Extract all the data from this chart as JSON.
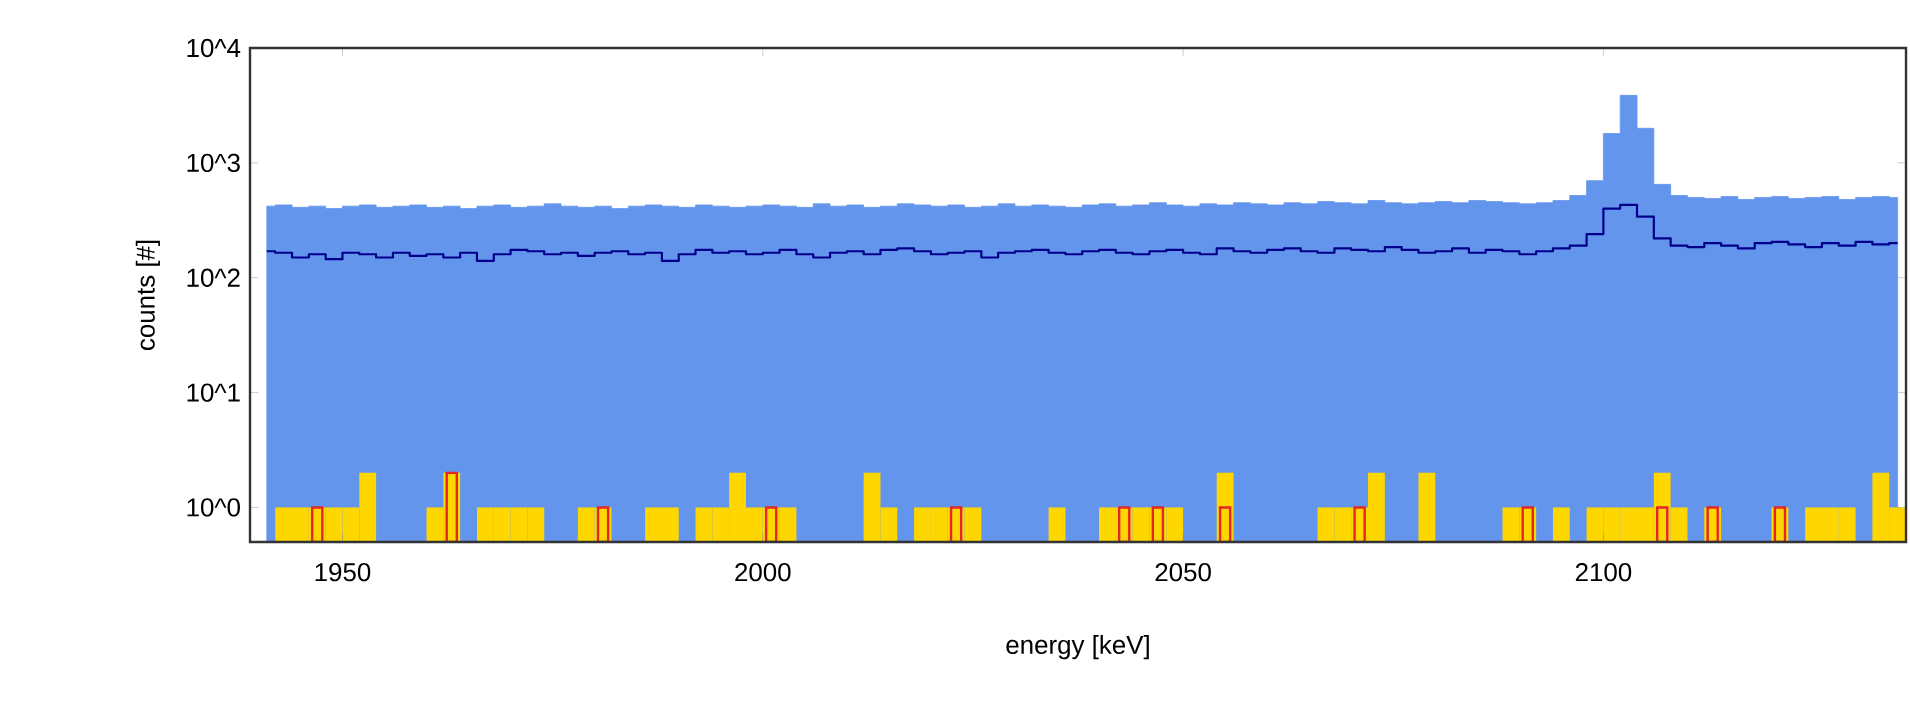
{
  "chart_data": {
    "type": "histogram",
    "xlabel": "energy [keV]",
    "ylabel": "counts [#]",
    "bins": [
      1940,
      1942,
      1944,
      1946,
      1948,
      1950,
      1952,
      1954,
      1956,
      1958,
      1960,
      1962,
      1964,
      1966,
      1968,
      1970,
      1972,
      1974,
      1976,
      1978,
      1980,
      1982,
      1984,
      1986,
      1988,
      1990,
      1992,
      1994,
      1996,
      1998,
      2000,
      2002,
      2004,
      2006,
      2008,
      2010,
      2012,
      2014,
      2016,
      2018,
      2020,
      2022,
      2024,
      2026,
      2028,
      2030,
      2032,
      2034,
      2036,
      2038,
      2040,
      2042,
      2044,
      2046,
      2048,
      2050,
      2052,
      2054,
      2056,
      2058,
      2060,
      2062,
      2064,
      2066,
      2068,
      2070,
      2072,
      2074,
      2076,
      2078,
      2080,
      2082,
      2084,
      2086,
      2088,
      2090,
      2092,
      2094,
      2096,
      2098,
      2100,
      2102,
      2104,
      2106,
      2108,
      2110,
      2112,
      2114,
      2116,
      2118,
      2120,
      2122,
      2124,
      2126,
      2128,
      2130,
      2132,
      2134,
      2136
    ],
    "series": [
      {
        "type": "area",
        "color": "#6495ed",
        "x": [
          1941,
          1943,
          1945,
          1947,
          1949,
          1951,
          1953,
          1955,
          1957,
          1959,
          1961,
          1963,
          1965,
          1967,
          1969,
          1971,
          1973,
          1975,
          1977,
          1979,
          1981,
          1983,
          1985,
          1987,
          1989,
          1991,
          1993,
          1995,
          1997,
          1999,
          2001,
          2003,
          2005,
          2007,
          2009,
          2011,
          2013,
          2015,
          2017,
          2019,
          2021,
          2023,
          2025,
          2027,
          2029,
          2031,
          2033,
          2035,
          2037,
          2039,
          2041,
          2043,
          2045,
          2047,
          2049,
          2051,
          2053,
          2055,
          2057,
          2059,
          2061,
          2063,
          2065,
          2067,
          2069,
          2071,
          2073,
          2075,
          2077,
          2079,
          2081,
          2083,
          2085,
          2087,
          2089,
          2091,
          2093,
          2095,
          2097,
          2099,
          2101,
          2103,
          2105,
          2107,
          2109,
          2111,
          2113,
          2115,
          2117,
          2119,
          2121,
          2123,
          2125,
          2127,
          2129,
          2131,
          2133,
          2135
        ],
        "values": [
          420,
          430,
          410,
          420,
          400,
          420,
          430,
          410,
          420,
          430,
          410,
          420,
          400,
          420,
          430,
          410,
          420,
          440,
          420,
          410,
          420,
          400,
          420,
          430,
          420,
          410,
          430,
          420,
          410,
          420,
          430,
          420,
          410,
          440,
          420,
          430,
          410,
          420,
          440,
          430,
          420,
          430,
          410,
          420,
          440,
          420,
          430,
          420,
          410,
          430,
          440,
          420,
          430,
          450,
          430,
          420,
          440,
          430,
          450,
          440,
          430,
          450,
          440,
          460,
          450,
          440,
          470,
          450,
          440,
          450,
          460,
          450,
          470,
          460,
          450,
          440,
          450,
          470,
          520,
          700,
          1800,
          3870,
          2000,
          650,
          520,
          500,
          490,
          510,
          480,
          500,
          510,
          490,
          500,
          510,
          480,
          500,
          510,
          500
        ]
      },
      {
        "type": "step",
        "color": "#00008b",
        "x": [
          1941,
          1943,
          1945,
          1947,
          1949,
          1951,
          1953,
          1955,
          1957,
          1959,
          1961,
          1963,
          1965,
          1967,
          1969,
          1971,
          1973,
          1975,
          1977,
          1979,
          1981,
          1983,
          1985,
          1987,
          1989,
          1991,
          1993,
          1995,
          1997,
          1999,
          2001,
          2003,
          2005,
          2007,
          2009,
          2011,
          2013,
          2015,
          2017,
          2019,
          2021,
          2023,
          2025,
          2027,
          2029,
          2031,
          2033,
          2035,
          2037,
          2039,
          2041,
          2043,
          2045,
          2047,
          2049,
          2051,
          2053,
          2055,
          2057,
          2059,
          2061,
          2063,
          2065,
          2067,
          2069,
          2071,
          2073,
          2075,
          2077,
          2079,
          2081,
          2083,
          2085,
          2087,
          2089,
          2091,
          2093,
          2095,
          2097,
          2099,
          2101,
          2103,
          2105,
          2107,
          2109,
          2111,
          2113,
          2115,
          2117,
          2119,
          2121,
          2123,
          2125,
          2127,
          2129,
          2131,
          2133,
          2135
        ],
        "values": [
          170,
          165,
          150,
          160,
          145,
          165,
          160,
          150,
          165,
          155,
          160,
          150,
          165,
          140,
          160,
          175,
          170,
          160,
          165,
          155,
          165,
          170,
          160,
          165,
          140,
          160,
          175,
          165,
          170,
          160,
          165,
          175,
          160,
          150,
          165,
          170,
          160,
          175,
          180,
          170,
          160,
          165,
          170,
          150,
          165,
          170,
          175,
          165,
          160,
          170,
          175,
          165,
          160,
          170,
          175,
          165,
          160,
          180,
          170,
          165,
          175,
          180,
          170,
          165,
          180,
          175,
          170,
          185,
          175,
          165,
          170,
          180,
          165,
          175,
          170,
          160,
          170,
          180,
          190,
          240,
          400,
          430,
          340,
          220,
          190,
          185,
          200,
          190,
          180,
          200,
          205,
          195,
          185,
          200,
          190,
          205,
          195,
          200
        ]
      },
      {
        "type": "histogram",
        "color": "#ffd700",
        "values": [
          null,
          1,
          1,
          1,
          1,
          1,
          2,
          null,
          null,
          null,
          1,
          2,
          null,
          1,
          1,
          1,
          1,
          null,
          null,
          1,
          1,
          null,
          null,
          1,
          1,
          null,
          1,
          1,
          2,
          1,
          1,
          1,
          null,
          null,
          null,
          null,
          2,
          1,
          null,
          1,
          1,
          1,
          1,
          null,
          null,
          null,
          null,
          1,
          null,
          null,
          1,
          1,
          1,
          1,
          1,
          null,
          null,
          2,
          null,
          null,
          null,
          null,
          null,
          1,
          1,
          1,
          2,
          null,
          null,
          2,
          null,
          null,
          null,
          null,
          1,
          1,
          null,
          1,
          null,
          1,
          1,
          1,
          1,
          2,
          1,
          null,
          1,
          null,
          null,
          null,
          1,
          null,
          1,
          1,
          1,
          null,
          2,
          1
        ]
      },
      {
        "type": "bar",
        "color": "#e3262a",
        "x": [
          1947,
          1963,
          1981,
          2001,
          2023,
          2043,
          2047,
          2055,
          2071,
          2091,
          2107,
          2113,
          2121
        ],
        "values": [
          1,
          2,
          1,
          1,
          1,
          1,
          1,
          1,
          1,
          1,
          1,
          1,
          1
        ]
      }
    ],
    "xlim": [
      1939,
      2136
    ],
    "ylim": [
      0.5,
      10000
    ],
    "log": "y",
    "xticks": [
      1950,
      2000,
      2050,
      2100
    ],
    "yticks": [
      {
        "value": 1,
        "label": "10^0"
      },
      {
        "value": 10,
        "label": "10^1"
      },
      {
        "value": 100,
        "label": "10^2"
      },
      {
        "value": 1000,
        "label": "10^3"
      },
      {
        "value": 10000,
        "label": "10^4"
      }
    ]
  }
}
